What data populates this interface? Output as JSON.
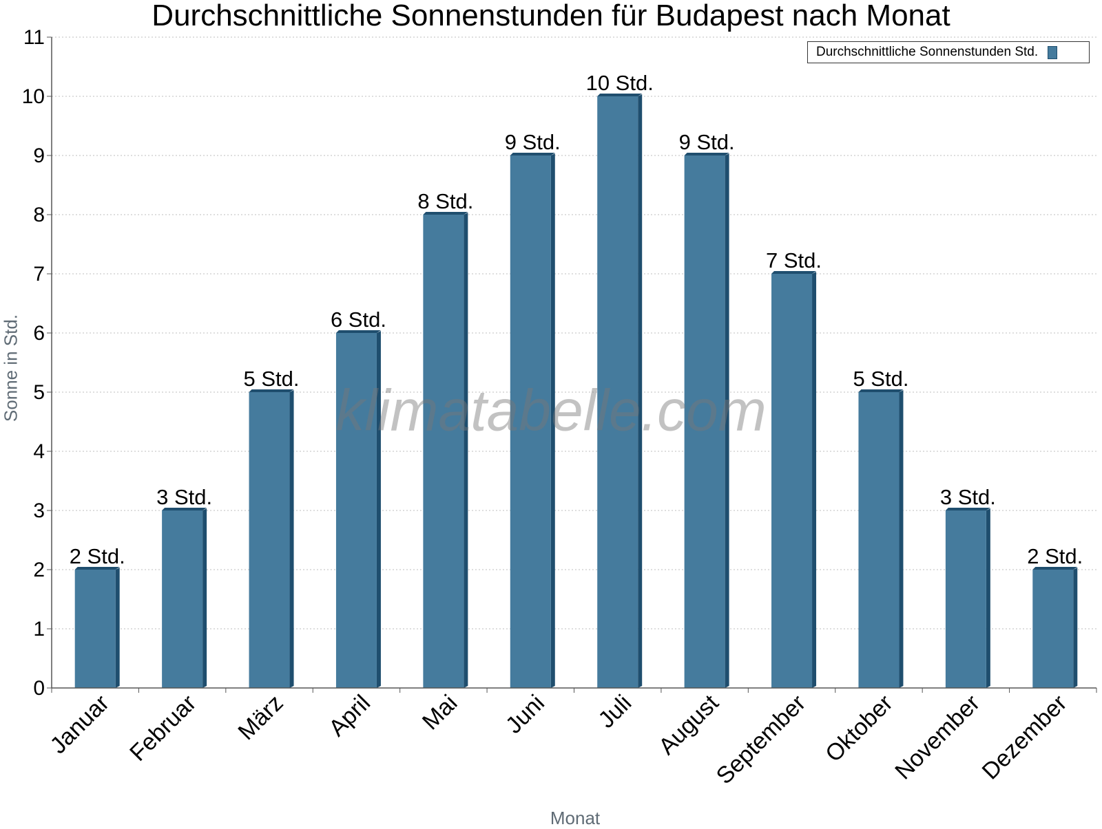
{
  "chart_data": {
    "type": "bar",
    "title": "Durchschnittliche Sonnenstunden für Budapest nach Monat",
    "xlabel": "Monat",
    "ylabel": "Sonne in Std.",
    "ylim": [
      0,
      11
    ],
    "yticks": [
      0,
      1,
      2,
      3,
      4,
      5,
      6,
      7,
      8,
      9,
      10,
      11
    ],
    "grid": true,
    "legend_position": "top-right",
    "categories": [
      "Januar",
      "Februar",
      "März",
      "April",
      "Mai",
      "Juni",
      "Juli",
      "August",
      "September",
      "Oktober",
      "November",
      "Dezember"
    ],
    "series": [
      {
        "name": "Durchschnittliche Sonnenstunden Std.",
        "values": [
          2,
          3,
          5,
          6,
          8,
          9,
          10,
          9,
          7,
          5,
          3,
          2
        ],
        "data_labels": [
          "2 Std.",
          "3 Std.",
          "5 Std.",
          "6 Std.",
          "8 Std.",
          "9 Std.",
          "10 Std.",
          "9 Std.",
          "7 Std.",
          "5 Std.",
          "3 Std.",
          "2 Std."
        ]
      }
    ],
    "watermark": "klimatabelle.com",
    "colors": {
      "bar": "#457b9d",
      "bar_side": "#1f4e6e",
      "grid": "#bdbdbd"
    }
  }
}
